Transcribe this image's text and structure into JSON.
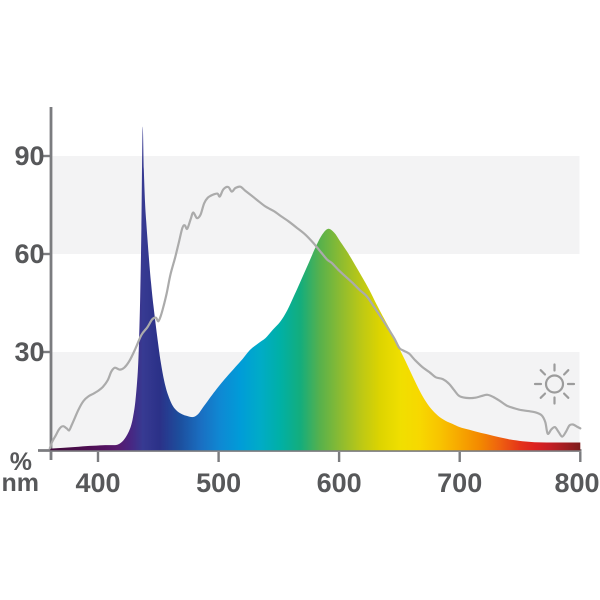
{
  "page": {
    "background_color": "#ffffff",
    "description_title": "Light spectrum chart"
  },
  "axes": {
    "x": {
      "unit_label": "nm",
      "tick_labels": [
        "400",
        "500",
        "600",
        "700",
        "800"
      ],
      "ticks_nm": [
        400,
        500,
        600,
        700,
        800
      ]
    },
    "y": {
      "unit_label": "%",
      "tick_labels": [
        "30",
        "60",
        "90"
      ],
      "ticks_pct": [
        30,
        60,
        90
      ]
    }
  },
  "style": {
    "axis_color": "#7b7c7f",
    "tick_label_color": "#57585a",
    "band_color": "#f3f3f4",
    "daylight_line_color": "#ababab",
    "sun_icon_color": "#9c9c9c"
  },
  "icons": [
    {
      "name": "sun-icon",
      "meaning": "daylight / sunlight reference"
    }
  ],
  "chart_data": {
    "type": "area",
    "title": "",
    "xlabel": "nm",
    "ylabel": "%",
    "xlim": [
      360,
      800
    ],
    "ylim": [
      0,
      105
    ],
    "x_ticks": [
      400,
      500,
      600,
      700,
      800
    ],
    "y_ticks": [
      30,
      60,
      90
    ],
    "grid": "horizontal background bands",
    "background_bands_pct": [
      [
        0,
        30
      ],
      [
        60,
        90
      ]
    ],
    "legend_position": "none",
    "series": [
      {
        "name": "led-spectrum",
        "type": "area-gradient",
        "points": [
          [
            360,
            0.4
          ],
          [
            372,
            0.7
          ],
          [
            384,
            1.0
          ],
          [
            396,
            1.3
          ],
          [
            406,
            1.5
          ],
          [
            412,
            1.5
          ],
          [
            416,
            1.6
          ],
          [
            420,
            2.5
          ],
          [
            424,
            4.5
          ],
          [
            427,
            7.0
          ],
          [
            429,
            10.0
          ],
          [
            431,
            15.0
          ],
          [
            433,
            24.0
          ],
          [
            434,
            33.0
          ],
          [
            435,
            47.0
          ],
          [
            436,
            68.0
          ],
          [
            437,
            98.5
          ],
          [
            438,
            86.0
          ],
          [
            439,
            76.0
          ],
          [
            440,
            70.0
          ],
          [
            442,
            60.0
          ],
          [
            444,
            51.0
          ],
          [
            446,
            44.0
          ],
          [
            449,
            35.0
          ],
          [
            452,
            27.0
          ],
          [
            455,
            21.0
          ],
          [
            458,
            17.0
          ],
          [
            462,
            13.5
          ],
          [
            466,
            11.8
          ],
          [
            470,
            10.9
          ],
          [
            474,
            10.4
          ],
          [
            479,
            10.1
          ],
          [
            483,
            11.0
          ],
          [
            487,
            13.0
          ],
          [
            491,
            15.0
          ],
          [
            496,
            17.5
          ],
          [
            501,
            19.9
          ],
          [
            507,
            22.5
          ],
          [
            514,
            25.4
          ],
          [
            520,
            27.9
          ],
          [
            526,
            30.6
          ],
          [
            533,
            32.7
          ],
          [
            539,
            34.3
          ],
          [
            545,
            36.8
          ],
          [
            551,
            39.2
          ],
          [
            557,
            42.8
          ],
          [
            563,
            47.5
          ],
          [
            569,
            52.5
          ],
          [
            575,
            57.5
          ],
          [
            581,
            62.5
          ],
          [
            586,
            66.0
          ],
          [
            591,
            67.7
          ],
          [
            596,
            66.5
          ],
          [
            601,
            63.8
          ],
          [
            607,
            60.5
          ],
          [
            613,
            56.8
          ],
          [
            619,
            53.0
          ],
          [
            625,
            49.0
          ],
          [
            631,
            44.6
          ],
          [
            637,
            40.4
          ],
          [
            643,
            36.3
          ],
          [
            649,
            31.8
          ],
          [
            655,
            27.2
          ],
          [
            661,
            22.5
          ],
          [
            667,
            18.0
          ],
          [
            672,
            14.8
          ],
          [
            677,
            12.3
          ],
          [
            682,
            10.5
          ],
          [
            688,
            9.0
          ],
          [
            694,
            8.0
          ],
          [
            700,
            7.0
          ],
          [
            708,
            6.2
          ],
          [
            716,
            5.4
          ],
          [
            724,
            4.7
          ],
          [
            733,
            3.9
          ],
          [
            742,
            3.2
          ],
          [
            752,
            2.7
          ],
          [
            762,
            2.4
          ],
          [
            772,
            2.3
          ],
          [
            782,
            2.3
          ],
          [
            792,
            2.3
          ],
          [
            800,
            2.3
          ]
        ]
      },
      {
        "name": "daylight-reference",
        "type": "line",
        "points": [
          [
            360,
            0.5
          ],
          [
            362,
            2.5
          ],
          [
            365,
            4.5
          ],
          [
            368,
            6.5
          ],
          [
            371,
            7.3
          ],
          [
            374,
            6.6
          ],
          [
            376,
            6.0
          ],
          [
            378,
            7.5
          ],
          [
            381,
            10.0
          ],
          [
            384,
            12.5
          ],
          [
            388,
            15.0
          ],
          [
            392,
            16.4
          ],
          [
            396,
            17.2
          ],
          [
            400,
            18.1
          ],
          [
            404,
            19.3
          ],
          [
            408,
            21.3
          ],
          [
            411,
            24.0
          ],
          [
            414,
            25.2
          ],
          [
            418,
            24.6
          ],
          [
            422,
            25.3
          ],
          [
            426,
            27.2
          ],
          [
            431,
            31.0
          ],
          [
            436,
            35.2
          ],
          [
            441,
            37.6
          ],
          [
            445,
            40.0
          ],
          [
            448,
            40.5
          ],
          [
            450,
            39.4
          ],
          [
            452,
            41.0
          ],
          [
            454,
            43.5
          ],
          [
            457,
            48.0
          ],
          [
            460,
            53.5
          ],
          [
            464,
            59.0
          ],
          [
            467,
            63.5
          ],
          [
            470,
            68.0
          ],
          [
            472,
            68.8
          ],
          [
            474,
            67.7
          ],
          [
            477,
            70.8
          ],
          [
            479,
            72.7
          ],
          [
            482,
            71.0
          ],
          [
            485,
            72.0
          ],
          [
            488,
            75.5
          ],
          [
            491,
            77.2
          ],
          [
            495,
            78.1
          ],
          [
            499,
            78.5
          ],
          [
            501,
            77.6
          ],
          [
            504,
            79.8
          ],
          [
            508,
            80.5
          ],
          [
            511,
            79.1
          ],
          [
            514,
            80.2
          ],
          [
            518,
            80.6
          ],
          [
            522,
            79.4
          ],
          [
            527,
            78.0
          ],
          [
            533,
            76.2
          ],
          [
            539,
            74.5
          ],
          [
            546,
            73.1
          ],
          [
            552,
            71.5
          ],
          [
            558,
            70.0
          ],
          [
            565,
            68.0
          ],
          [
            572,
            65.9
          ],
          [
            579,
            63.2
          ],
          [
            585,
            60.5
          ],
          [
            590,
            58.3
          ],
          [
            594,
            57.2
          ],
          [
            599,
            55.3
          ],
          [
            605,
            53.2
          ],
          [
            611,
            51.2
          ],
          [
            617,
            49.0
          ],
          [
            623,
            47.0
          ],
          [
            629,
            43.8
          ],
          [
            635,
            40.5
          ],
          [
            641,
            37.0
          ],
          [
            646,
            34.0
          ],
          [
            650,
            31.2
          ],
          [
            654,
            30.3
          ],
          [
            658,
            29.5
          ],
          [
            663,
            27.5
          ],
          [
            669,
            25.4
          ],
          [
            675,
            23.8
          ],
          [
            680,
            22.3
          ],
          [
            686,
            21.7
          ],
          [
            691,
            20.3
          ],
          [
            695,
            18.5
          ],
          [
            699,
            16.7
          ],
          [
            703,
            16.1
          ],
          [
            708,
            15.9
          ],
          [
            713,
            16.0
          ],
          [
            718,
            16.5
          ],
          [
            723,
            16.9
          ],
          [
            728,
            16.2
          ],
          [
            733,
            15.1
          ],
          [
            739,
            13.6
          ],
          [
            745,
            12.8
          ],
          [
            751,
            12.2
          ],
          [
            757,
            11.9
          ],
          [
            763,
            11.5
          ],
          [
            768,
            10.6
          ],
          [
            771,
            8.5
          ],
          [
            773,
            5.0
          ],
          [
            776,
            6.3
          ],
          [
            779,
            7.0
          ],
          [
            782,
            5.5
          ],
          [
            785,
            4.1
          ],
          [
            788,
            5.5
          ],
          [
            791,
            7.5
          ],
          [
            794,
            7.8
          ],
          [
            797,
            7.2
          ],
          [
            800,
            6.6
          ]
        ]
      }
    ],
    "gradient_stops": [
      [
        360,
        "#420a3c"
      ],
      [
        390,
        "#4c0e50"
      ],
      [
        405,
        "#531260"
      ],
      [
        416,
        "#571a6e"
      ],
      [
        426,
        "#4a2480"
      ],
      [
        437,
        "#373a92"
      ],
      [
        451,
        "#2b3188"
      ],
      [
        468,
        "#1c4f9e"
      ],
      [
        485,
        "#1a6ec1"
      ],
      [
        501,
        "#0f88d3"
      ],
      [
        518,
        "#009cd8"
      ],
      [
        534,
        "#00abc8"
      ],
      [
        551,
        "#00b0a6"
      ],
      [
        568,
        "#14ad7c"
      ],
      [
        584,
        "#57b14c"
      ],
      [
        601,
        "#8cbb31"
      ],
      [
        617,
        "#b9c717"
      ],
      [
        634,
        "#ddd400"
      ],
      [
        651,
        "#f0df00"
      ],
      [
        667,
        "#f7d800"
      ],
      [
        684,
        "#f8c300"
      ],
      [
        700,
        "#f7a700"
      ],
      [
        717,
        "#f38800"
      ],
      [
        734,
        "#ee5f10"
      ],
      [
        750,
        "#e43419"
      ],
      [
        763,
        "#dc2020"
      ],
      [
        775,
        "#c41e24"
      ],
      [
        788,
        "#a01d20"
      ],
      [
        800,
        "#7c1b1b"
      ]
    ]
  }
}
